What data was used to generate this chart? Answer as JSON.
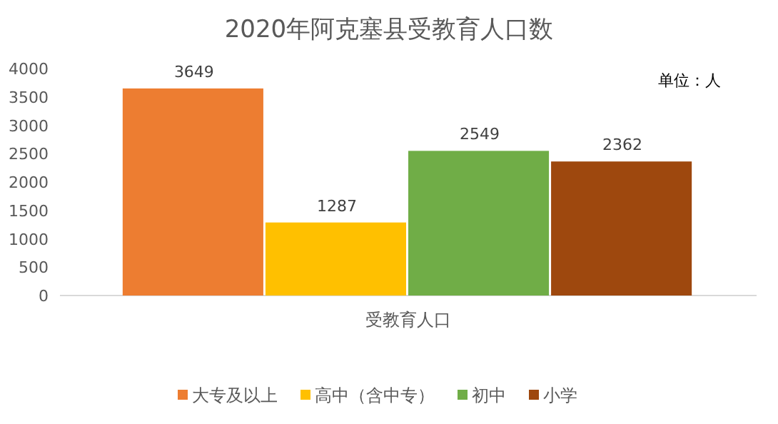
{
  "chart_data": {
    "type": "bar",
    "title": "2020年阿克塞县受教育人口数",
    "categories": [
      "受教育人口"
    ],
    "series": [
      {
        "name": "大专及以上",
        "color": "#ed7d31",
        "values": [
          3649
        ]
      },
      {
        "name": "高中（含中专）",
        "color": "#ffc000",
        "values": [
          1287
        ]
      },
      {
        "name": "初中",
        "color": "#70ad47",
        "values": [
          2549
        ]
      },
      {
        "name": "小学",
        "color": "#9e480e",
        "values": [
          2362
        ]
      }
    ],
    "ylim": [
      0,
      4000
    ],
    "yticks": [
      0,
      500,
      1000,
      1500,
      2000,
      2500,
      3000,
      3500,
      4000
    ],
    "data_labels": true,
    "legend": "bottom",
    "grid": false,
    "annotations": [
      "单位：人"
    ]
  }
}
